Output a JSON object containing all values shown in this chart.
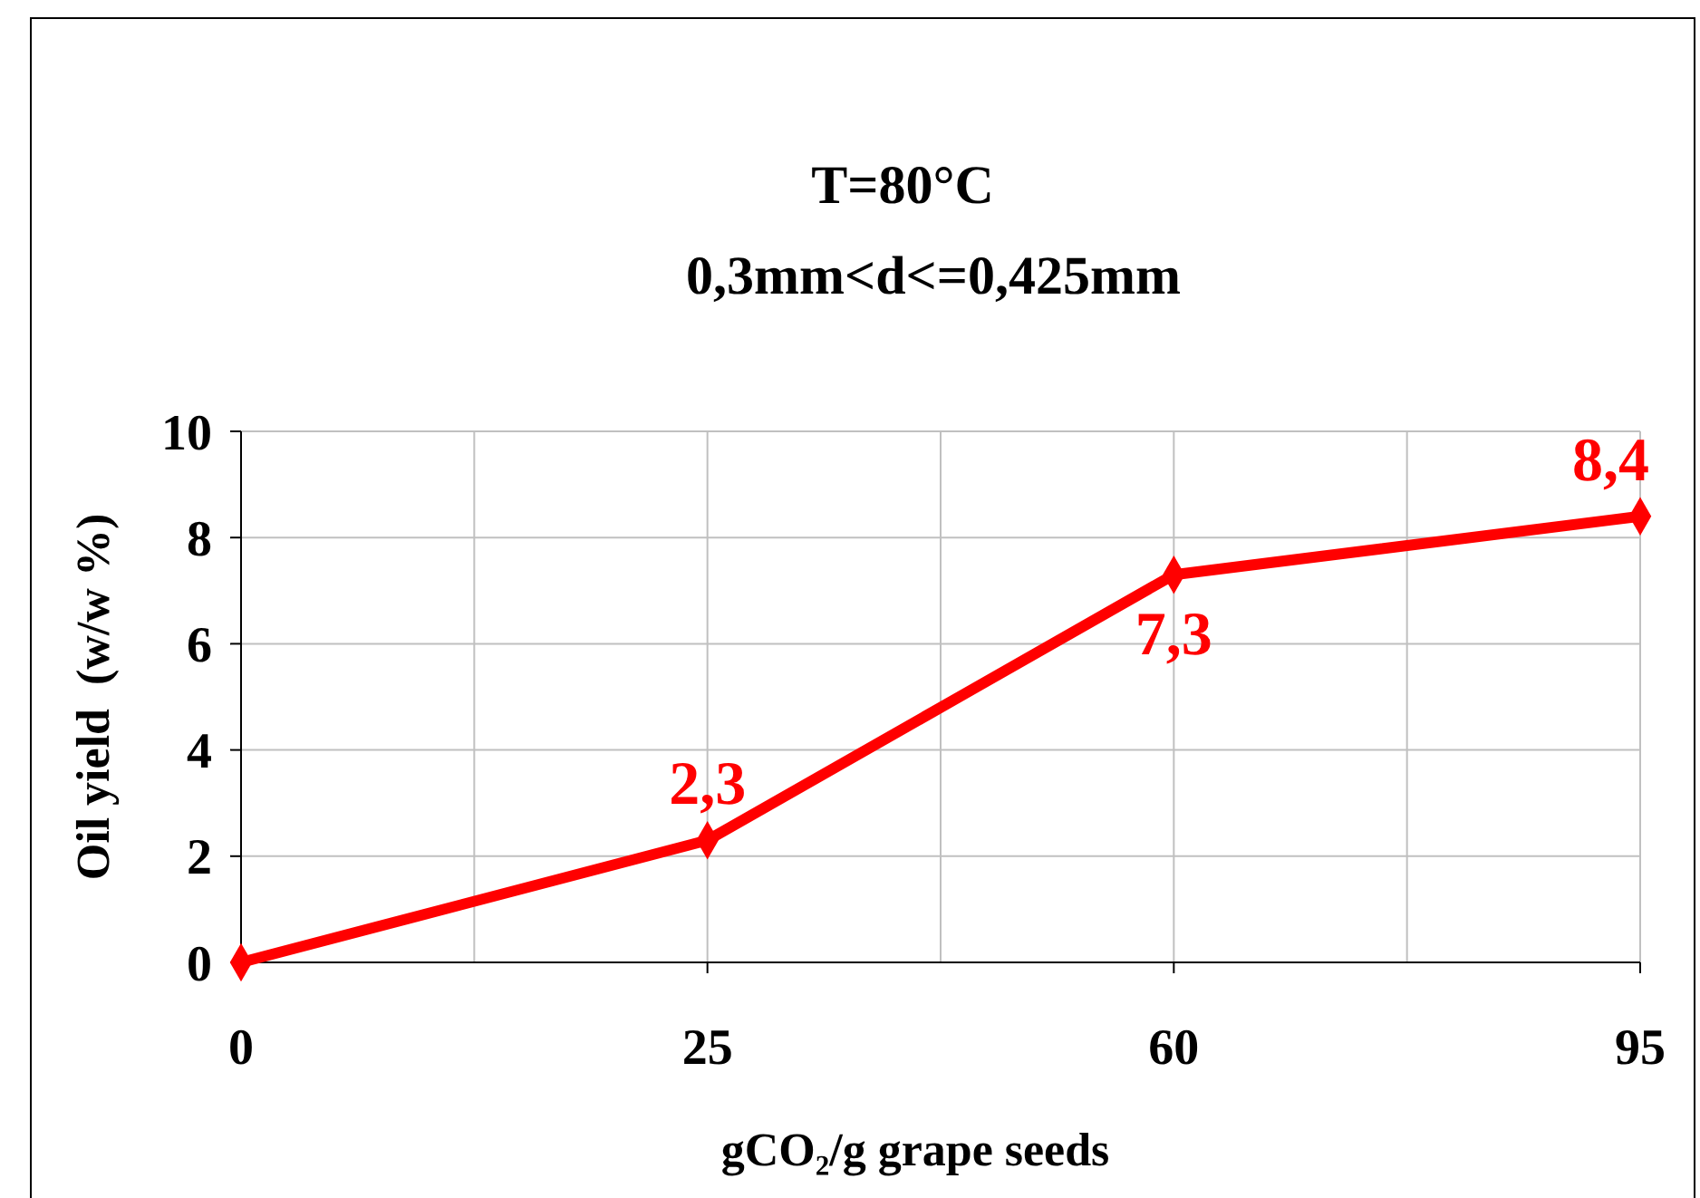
{
  "chart_data": {
    "type": "line",
    "title": "T=80°C",
    "subtitle": "0,3mm<d<=0,425mm",
    "xlabel": "gCO₂/g grape seeds",
    "ylabel": "Oil yield  (w/w %)",
    "categories": [
      "0",
      "25",
      "60",
      "95"
    ],
    "series": [
      {
        "color": "#ff0000",
        "values": [
          0,
          2.3,
          7.3,
          8.4
        ],
        "value_labels": [
          null,
          "2,3",
          "7,3",
          "8,4"
        ]
      }
    ],
    "ylim": [
      0,
      10
    ],
    "yticks": [
      0,
      2,
      4,
      6,
      8,
      10
    ],
    "grid": true,
    "marker": "diamond",
    "line_style": "solid"
  }
}
